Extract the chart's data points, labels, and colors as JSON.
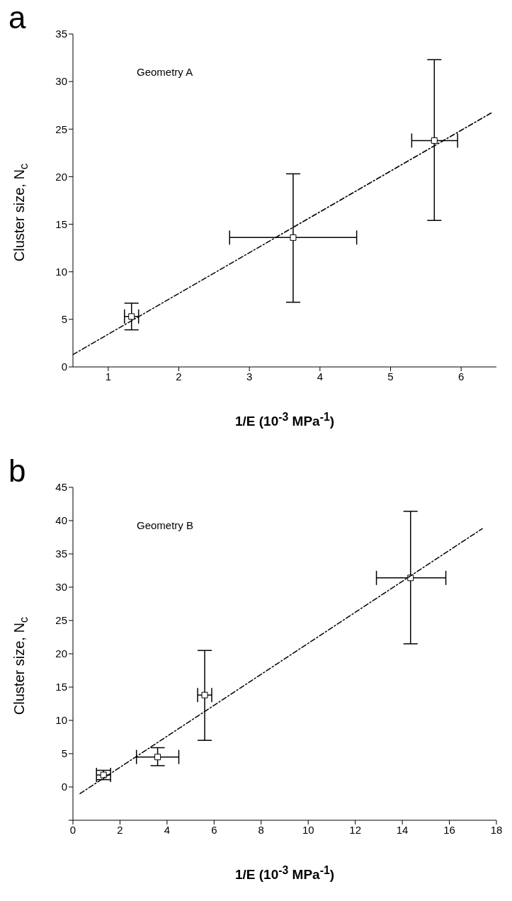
{
  "chart_data": [
    {
      "type": "scatter",
      "title": "a",
      "xlabel": "1/E (10$^{-3}$ MPa$^{-1}$)",
      "ylabel": "Cluster size, N$_{c}$",
      "annotations": [
        "Geometry A"
      ],
      "xlim": [
        0.5,
        6.5
      ],
      "xticks": [
        1,
        2,
        3,
        4,
        5,
        6
      ],
      "ylim": [
        0,
        35
      ],
      "yticks": [
        0,
        5,
        10,
        15,
        20,
        25,
        30,
        35
      ],
      "marker": "square",
      "grid": false,
      "legend": false,
      "series": [
        {
          "color": "#000000",
          "x": [
            1.33,
            3.62,
            5.62
          ],
          "values": [
            5.3,
            13.6,
            23.8
          ],
          "errors": [
            [
              3.9,
              6.7
            ],
            [
              6.8,
              20.3
            ],
            [
              15.4,
              32.3
            ]
          ],
          "xerrors": [
            [
              1.23,
              1.43
            ],
            [
              2.72,
              4.52
            ],
            [
              5.3,
              5.95
            ]
          ]
        },
        {
          "type": "line",
          "marker": "none",
          "color": "#000000",
          "line_style": "dashed",
          "x": [
            0.5,
            6.45
          ],
          "values": [
            1.3,
            26.8
          ]
        }
      ]
    },
    {
      "type": "scatter",
      "title": "b",
      "xlabel": "1/E (10$^{-3}$ MPa$^{-1}$)",
      "ylabel": "Cluster size, N$_{c}$",
      "annotations": [
        "Geometry B"
      ],
      "xlim": [
        0,
        18
      ],
      "xticks": [
        0,
        2,
        4,
        6,
        8,
        10,
        12,
        14,
        16,
        18
      ],
      "ylim": [
        -5,
        45
      ],
      "yticks": [
        {
          "value": -5,
          "label": null
        },
        0,
        5,
        10,
        15,
        20,
        25,
        30,
        35,
        40,
        45
      ],
      "marker": "square",
      "grid": false,
      "legend": false,
      "series": [
        {
          "color": "#000000",
          "x": [
            1.3,
            3.6,
            5.6,
            14.35
          ],
          "values": [
            1.8,
            4.5,
            13.8,
            31.4
          ],
          "errors": [
            [
              1.1,
              2.5
            ],
            [
              3.2,
              5.9
            ],
            [
              7.0,
              20.5
            ],
            [
              21.5,
              41.4
            ]
          ],
          "xerrors": [
            [
              1.0,
              1.6
            ],
            [
              2.7,
              4.5
            ],
            [
              5.3,
              5.9
            ],
            [
              12.9,
              15.85
            ]
          ]
        },
        {
          "type": "line",
          "marker": "none",
          "color": "#000000",
          "line_style": "dashed",
          "x": [
            0.3,
            17.4
          ],
          "values": [
            -1.0,
            38.8
          ]
        }
      ]
    }
  ]
}
